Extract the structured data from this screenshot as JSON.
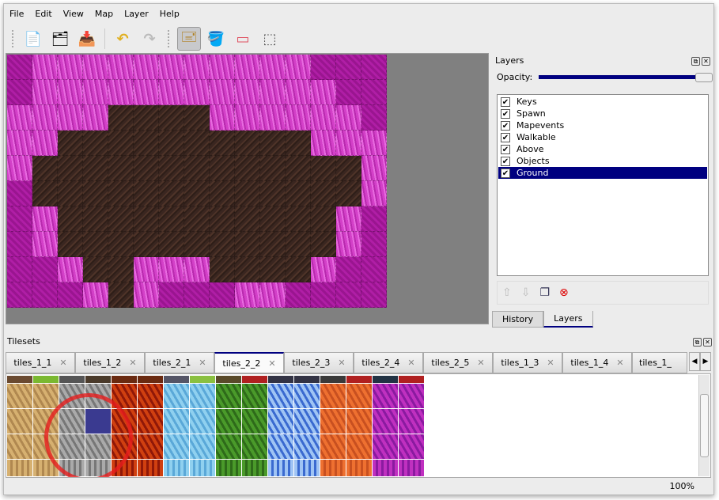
{
  "menu": [
    "File",
    "Edit",
    "View",
    "Map",
    "Layer",
    "Help"
  ],
  "toolbar": [
    {
      "name": "new-icon",
      "glyph": "📄"
    },
    {
      "name": "open-icon",
      "glyph": "🗂"
    },
    {
      "name": "save-icon",
      "glyph": "📥"
    },
    {
      "name": "undo-icon",
      "glyph": "↶"
    },
    {
      "name": "redo-icon",
      "glyph": "↷"
    },
    {
      "name": "stamp-brush-icon",
      "glyph": "🖃",
      "active": true
    },
    {
      "name": "bucket-fill-icon",
      "glyph": "🪣"
    },
    {
      "name": "eraser-icon",
      "glyph": "▭"
    },
    {
      "name": "rect-select-icon",
      "glyph": "⬚"
    }
  ],
  "layers_panel": {
    "title": "Layers",
    "opacity_label": "Opacity:",
    "opacity": 1.0,
    "layers": [
      {
        "name": "Keys",
        "visible": true
      },
      {
        "name": "Spawn",
        "visible": true
      },
      {
        "name": "Mapevents",
        "visible": true
      },
      {
        "name": "Walkable",
        "visible": true
      },
      {
        "name": "Above",
        "visible": true
      },
      {
        "name": "Objects",
        "visible": true
      },
      {
        "name": "Ground",
        "visible": true,
        "selected": true
      }
    ],
    "tabs": [
      "History",
      "Layers"
    ],
    "active_tab": "Layers"
  },
  "tilesets_panel": {
    "title": "Tilesets",
    "tabs": [
      "tiles_1_1",
      "tiles_1_2",
      "tiles_2_1",
      "tiles_2_2",
      "tiles_2_3",
      "tiles_2_4",
      "tiles_2_5",
      "tiles_1_3",
      "tiles_1_4",
      "tiles_1_"
    ],
    "active_tab": "tiles_2_2"
  },
  "status": {
    "zoom": "100%"
  },
  "colors": {
    "accent": "#000080",
    "highlight_circle": "#e61e1e"
  }
}
